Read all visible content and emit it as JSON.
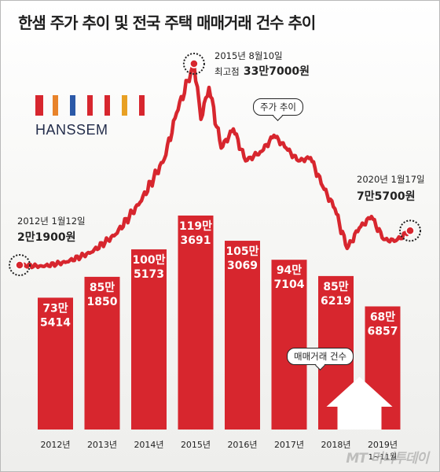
{
  "title": "한샘 주가 추이 및 전국 주택 매매거래 건수 추이",
  "logo": {
    "text": "HANSSEM",
    "colors": [
      "#d7262e",
      "#e8832a",
      "#2b59a8",
      "#d7262e",
      "#d7262e",
      "#e8a023",
      "#d7262e"
    ]
  },
  "colors": {
    "accent": "#d7262e",
    "line": "#d7262e",
    "bar": "#d7262e",
    "house": "#ffffff"
  },
  "annotations": {
    "start_date": "2012년 1월12일",
    "start_value": "2만1900원",
    "peak_date": "2015년 8월10일",
    "peak_prefix": "최고점",
    "peak_value": "33만7000원",
    "end_date": "2020년 1월17일",
    "end_value": "7만5700원",
    "line_bubble": "주가 추이",
    "bar_bubble": "매매거래 건수"
  },
  "watermark": "MT 머니투데이",
  "chart_data": [
    {
      "type": "bar",
      "categories": [
        "2012년",
        "2013년",
        "2014년",
        "2015년",
        "2016년",
        "2017년",
        "2018년",
        "2019년"
      ],
      "category_sublabels": [
        "",
        "",
        "",
        "",
        "",
        "",
        "",
        "1~11월"
      ],
      "values": [
        735414,
        851850,
        1005173,
        1193691,
        1053069,
        947104,
        856219,
        686857
      ],
      "value_labels": [
        [
          "73만",
          "5414"
        ],
        [
          "85만",
          "1850"
        ],
        [
          "100만",
          "5173"
        ],
        [
          "119만",
          "3691"
        ],
        [
          "105만",
          "3069"
        ],
        [
          "94만",
          "7104"
        ],
        [
          "85만",
          "6219"
        ],
        [
          "68만",
          "6857"
        ]
      ]
    },
    {
      "type": "line",
      "x_range": [
        "2012-01-12",
        "2020-01-17"
      ],
      "ylim": [
        21900,
        337000
      ],
      "x": [
        "2012-01-12",
        "2012-07",
        "2013-01",
        "2013-07",
        "2014-01",
        "2014-07",
        "2015-01",
        "2015-04",
        "2015-08-10",
        "2015-10",
        "2015-12",
        "2016-03",
        "2016-06",
        "2016-09",
        "2017-01",
        "2017-04",
        "2017-07",
        "2017-10",
        "2018-01",
        "2018-04",
        "2018-07",
        "2018-10",
        "2019-01",
        "2019-04",
        "2019-07",
        "2019-10",
        "2020-01-17"
      ],
      "y": [
        21900,
        20000,
        27000,
        42000,
        70000,
        120000,
        188000,
        260000,
        337000,
        250000,
        300000,
        205000,
        235000,
        185000,
        200000,
        225000,
        205000,
        185000,
        190000,
        145000,
        110000,
        48000,
        80000,
        98000,
        62000,
        60000,
        75700
      ]
    }
  ]
}
